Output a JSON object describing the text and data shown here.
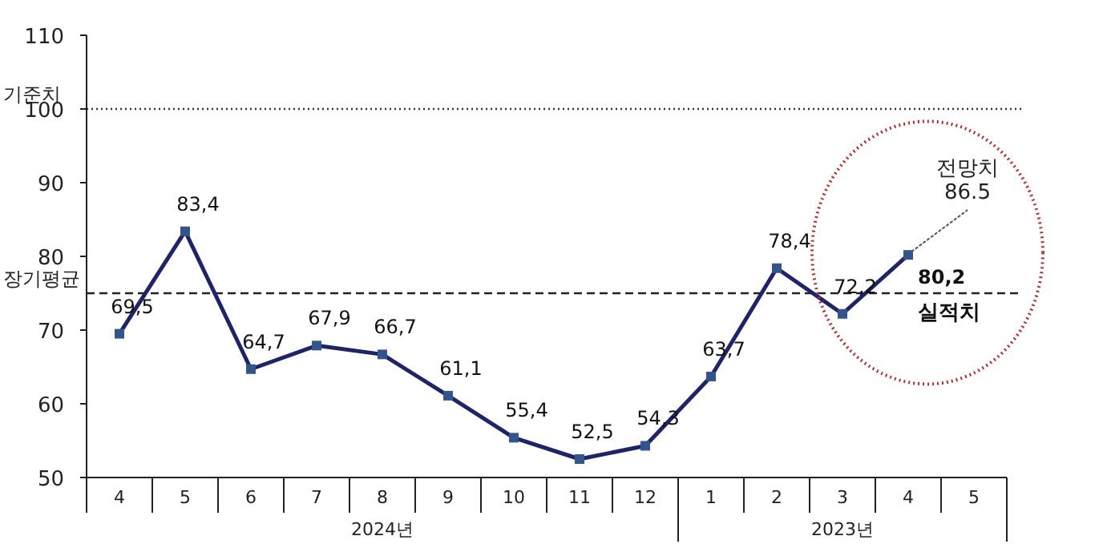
{
  "chart_data": {
    "type": "line",
    "categories": [
      "4",
      "5",
      "6",
      "7",
      "8",
      "9",
      "10",
      "11",
      "12",
      "1",
      "2",
      "3",
      "4",
      "5"
    ],
    "values": [
      69.5,
      83.4,
      64.7,
      67.9,
      66.7,
      61.1,
      55.4,
      52.5,
      54.3,
      63.7,
      78.4,
      72.2,
      80.2,
      null
    ],
    "value_labels": [
      "69,5",
      "83,4",
      "64,7",
      "67,9",
      "66,7",
      "61,1",
      "55,4",
      "52,5",
      "54,3",
      "63,7",
      "78,4",
      "72,2",
      "80,2",
      null
    ],
    "color": "#1f2466",
    "marker": "square",
    "line_style": "solid",
    "ylim": [
      50,
      110
    ],
    "yticks": [
      50,
      60,
      70,
      80,
      90,
      100,
      110
    ],
    "ref_lines": [
      {
        "axis": "y",
        "value": 100,
        "label": "기준치",
        "line_style": "dotted",
        "color": "#333333"
      },
      {
        "axis": "y",
        "value": 75,
        "label": "장기평균",
        "line_style": "dashed",
        "color": "#222222"
      }
    ],
    "annotations": [
      "2024년",
      "2023년",
      "전망치 86.5",
      "실적치"
    ],
    "grid": false
  }
}
